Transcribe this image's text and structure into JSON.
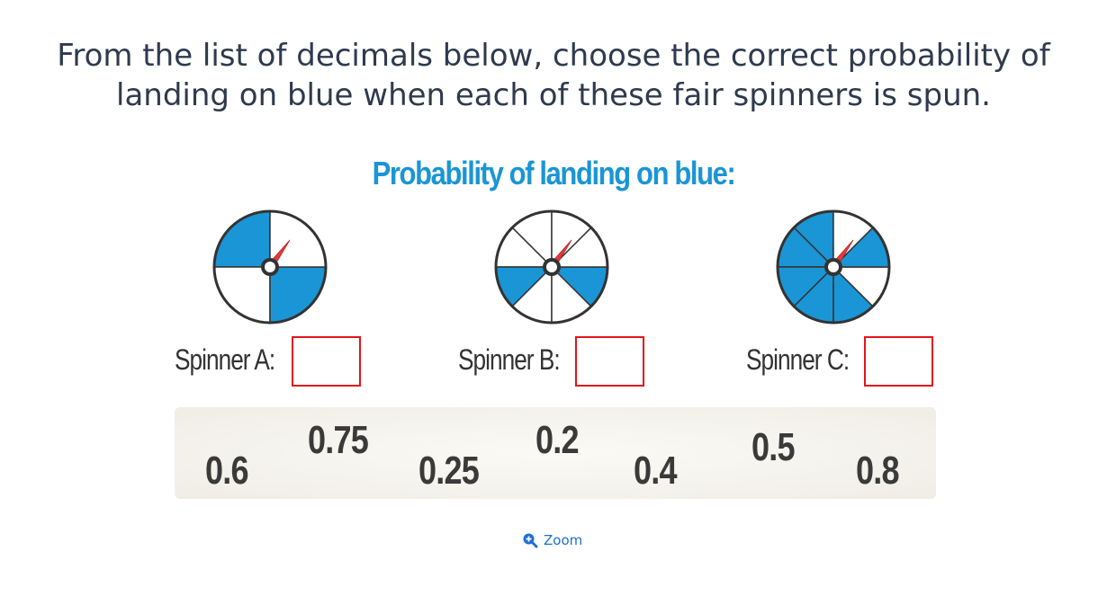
{
  "question": {
    "line1": "From the list of decimals below, choose the correct probability of",
    "line2": "landing on blue when each of these fair spinners is spun."
  },
  "subtitle": "Probability of landing on blue:",
  "colors": {
    "blue": "#1a95d5",
    "white": "#ffffff",
    "outline": "#333333",
    "box_border": "#e0151b",
    "pointer": "#e23b3b"
  },
  "spinners": [
    {
      "id": "A",
      "label": "Spinner A:",
      "sections": 4,
      "blue_sections": [
        0,
        2
      ]
    },
    {
      "id": "B",
      "label": "Spinner B:",
      "sections": 8,
      "blue_sections": [
        2,
        5
      ]
    },
    {
      "id": "C",
      "label": "Spinner C:",
      "sections": 8,
      "blue_sections": [
        0,
        1,
        2,
        3,
        4,
        6
      ]
    }
  ],
  "answers": {
    "A": "",
    "B": "",
    "C": ""
  },
  "options": [
    "0.6",
    "0.75",
    "0.25",
    "0.2",
    "0.4",
    "0.5",
    "0.8"
  ],
  "zoom": {
    "label": "Zoom",
    "icon": "zoom-in-icon"
  }
}
